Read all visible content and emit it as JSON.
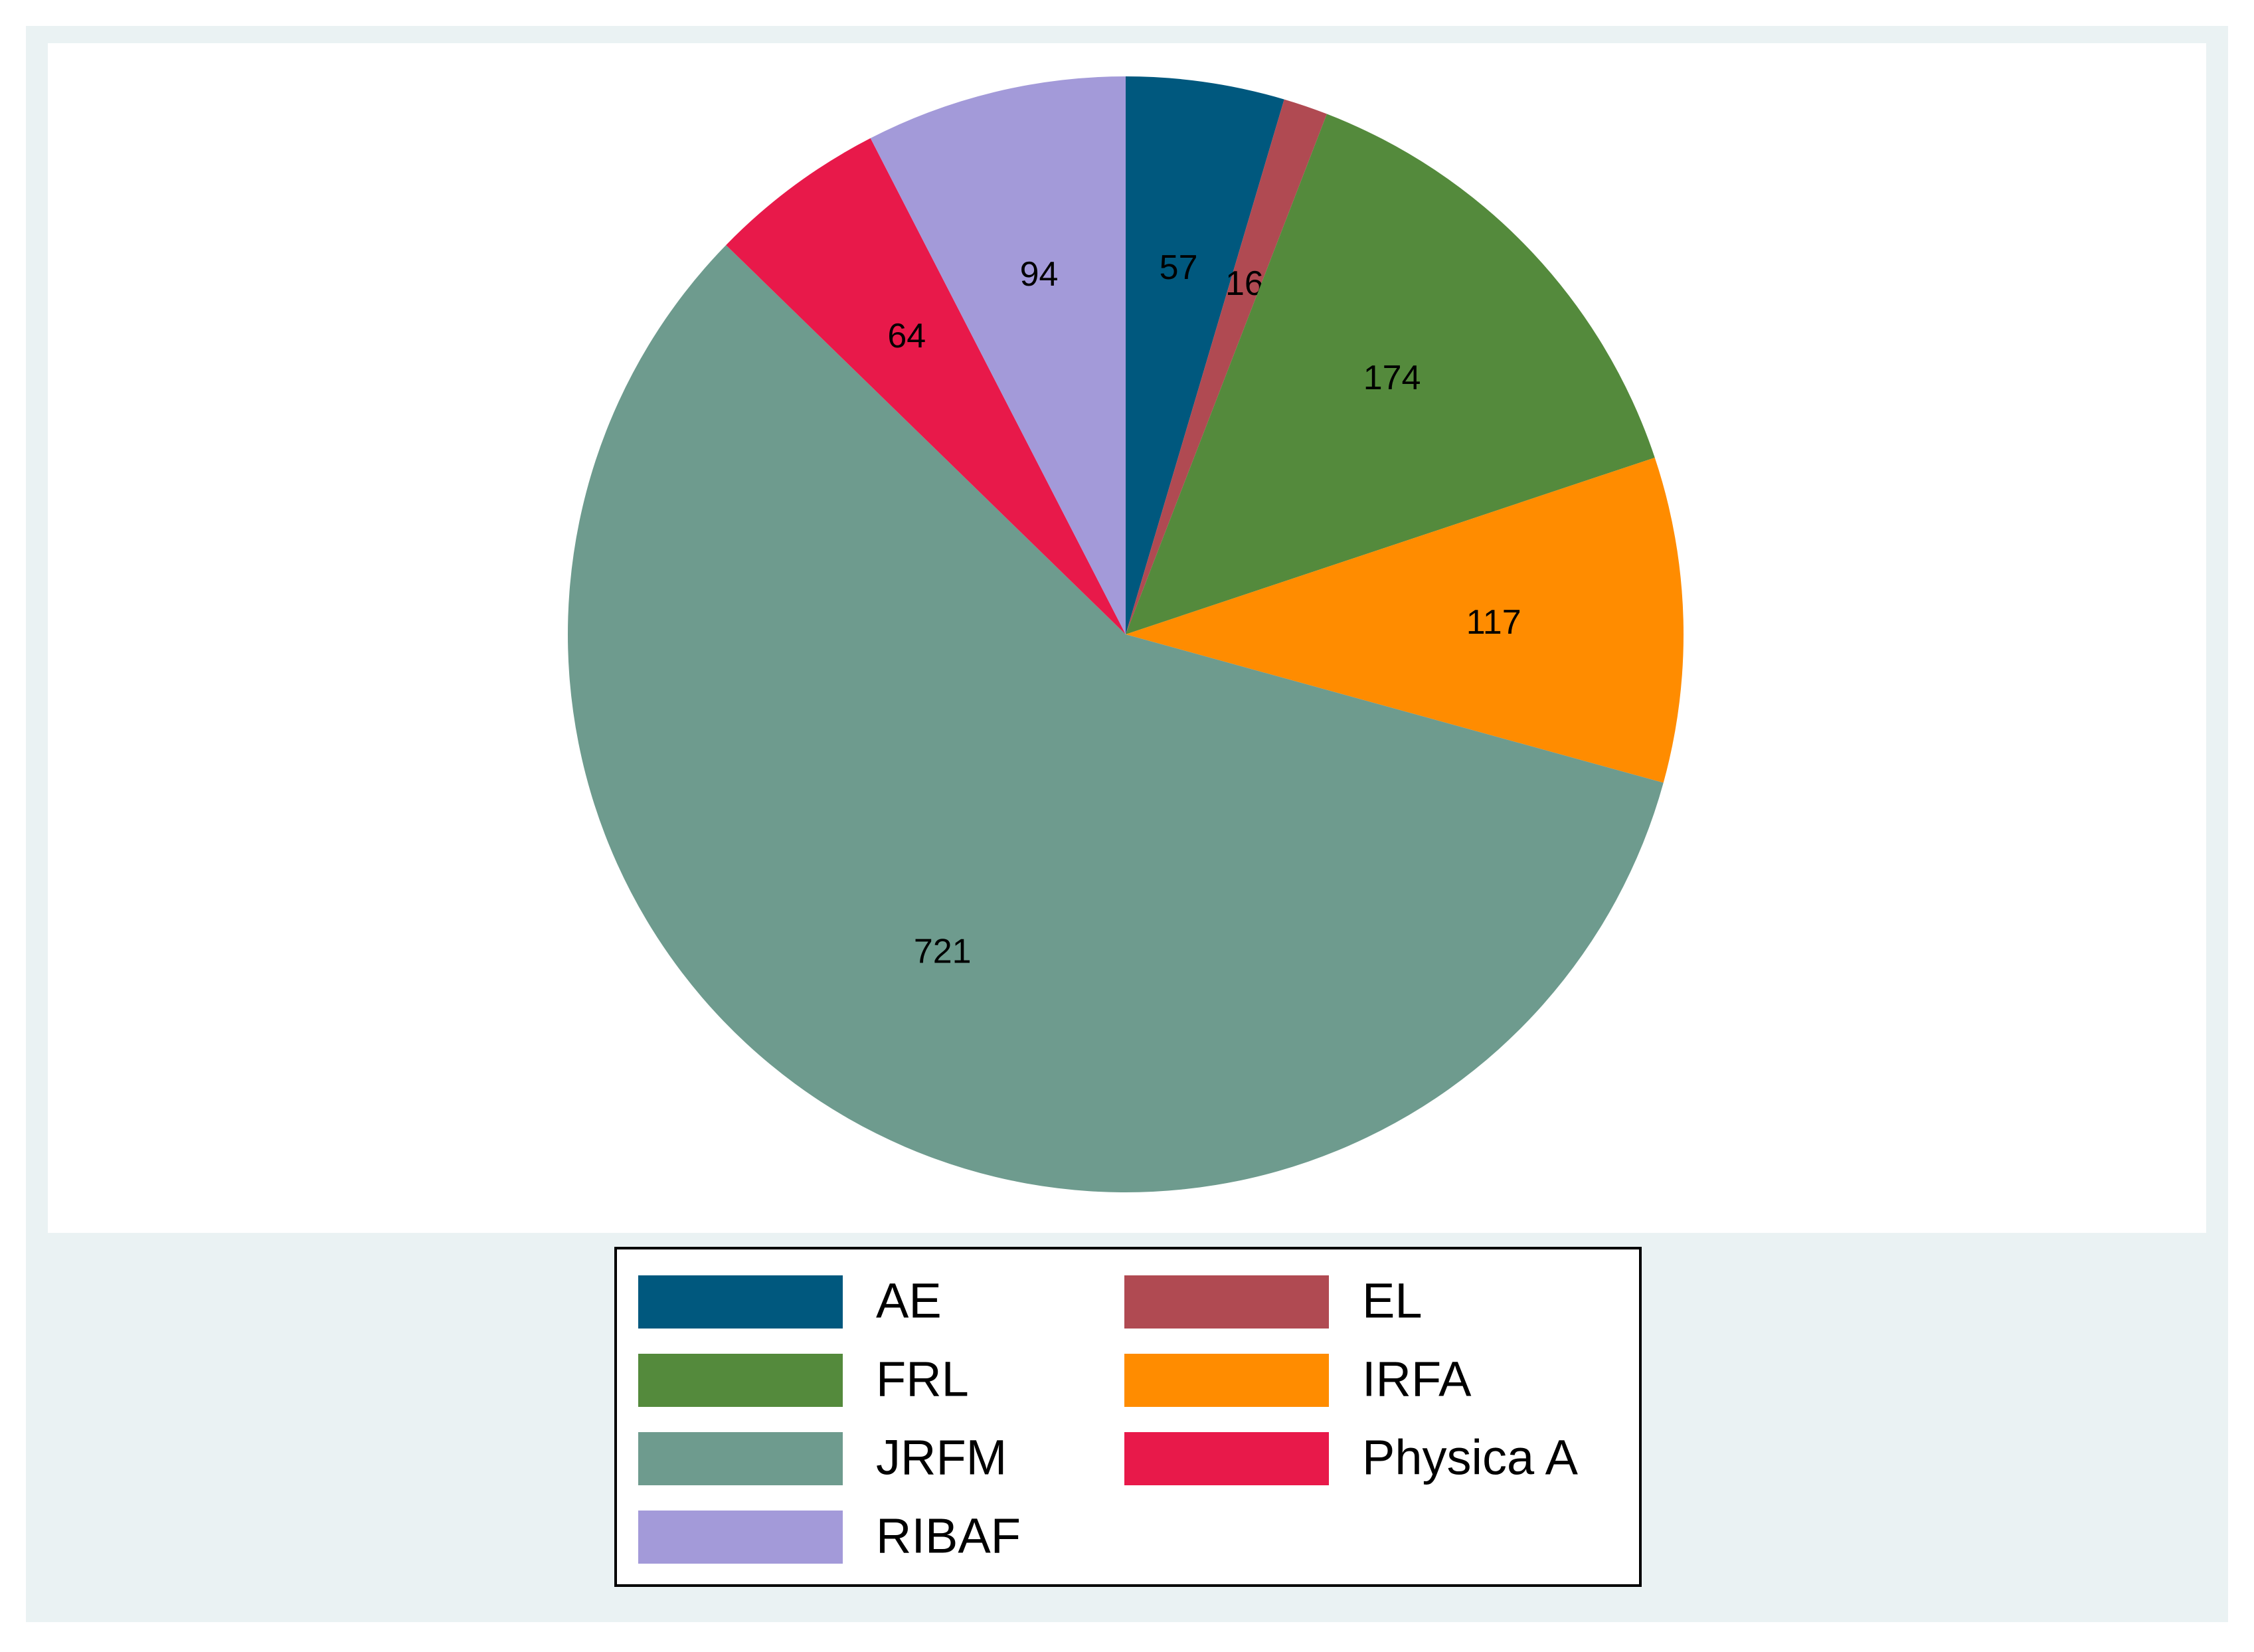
{
  "chart_data": {
    "type": "pie",
    "categories": [
      "AE",
      "EL",
      "FRL",
      "IRFA",
      "JRFM",
      "Physica A",
      "RIBAF"
    ],
    "values": [
      57,
      16,
      174,
      117,
      721,
      64,
      94
    ],
    "colors": [
      "#00587e",
      "#b04a52",
      "#548a3c",
      "#ff8c00",
      "#6e9b8e",
      "#e8194a",
      "#a39ad9"
    ],
    "legend": "bottom"
  }
}
